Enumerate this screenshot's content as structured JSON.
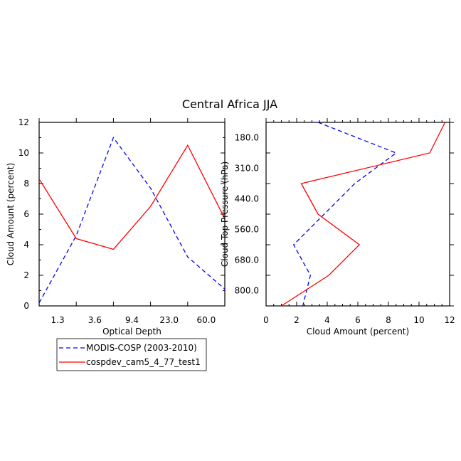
{
  "title": "Central Africa JJA",
  "colors": {
    "series1": "#0000ff",
    "series2": "#ff0000",
    "axes": "#000000"
  },
  "legend": {
    "placement": "below-left",
    "entries": [
      {
        "label": "MODIS-COSP (2003-2010)",
        "color": "#0000ff",
        "dash": "dashed"
      },
      {
        "label": "cospdev_cam5_4_77_test1",
        "color": "#ff0000",
        "dash": "solid"
      }
    ]
  },
  "chart_data": [
    {
      "type": "line",
      "xlabel": "Optical Depth",
      "ylabel": "Cloud Amount (percent)",
      "x_tick_labels": [
        "1.3",
        "3.6",
        "9.4",
        "23.0",
        "60.0"
      ],
      "x_index_range": [
        0,
        5
      ],
      "ylim": [
        0,
        12
      ],
      "y_ticks": [
        "0",
        "2",
        "4",
        "6",
        "8",
        "10",
        "12"
      ],
      "x": [
        0,
        1,
        2,
        3,
        4,
        5
      ],
      "series": [
        {
          "name": "MODIS-COSP (2003-2010)",
          "values": [
            0.2,
            4.6,
            11.0,
            7.7,
            3.2,
            1.1
          ]
        },
        {
          "name": "cospdev_cam5_4_77_test1",
          "values": [
            8.3,
            4.4,
            3.7,
            6.5,
            10.5,
            5.7
          ]
        }
      ]
    },
    {
      "type": "line",
      "xlabel": "Cloud Amount (percent)",
      "ylabel": "Cloud Top Pressure (hPa)",
      "xlim": [
        0,
        12
      ],
      "x_ticks": [
        "0",
        "2",
        "4",
        "6",
        "8",
        "10",
        "12"
      ],
      "y_tick_labels": [
        "180.0",
        "310.0",
        "440.0",
        "560.0",
        "680.0",
        "800.0"
      ],
      "y_index_range": [
        0,
        6
      ],
      "y": [
        0,
        1,
        2,
        3,
        4,
        5,
        6
      ],
      "series": [
        {
          "name": "MODIS-COSP (2003-2010)",
          "values": [
            3.4,
            8.5,
            5.8,
            3.8,
            1.8,
            2.9,
            2.4
          ]
        },
        {
          "name": "cospdev_cam5_4_77_test1",
          "values": [
            11.7,
            10.7,
            2.3,
            3.4,
            6.1,
            4.1,
            1.0
          ]
        }
      ]
    }
  ]
}
